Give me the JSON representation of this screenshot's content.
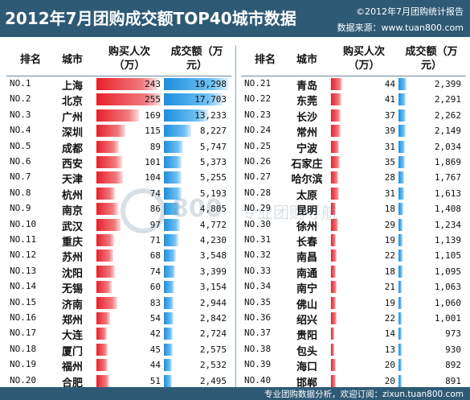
{
  "header": {
    "title": "2012年7月团购成交额TOP40城市数据",
    "copyright": "©2012年7月团购统计报告",
    "source": "数据来源：www.tuan800.com"
  },
  "columns": {
    "rank": "排名",
    "city": "城市",
    "buyers": "购买人次（万）",
    "amount": "成交额（万元）"
  },
  "footer": {
    "text": "专业团购数据分析，欢迎订阅：zixun.tuan800.com"
  },
  "watermark": {
    "logo_text": "800",
    "sub_text": "专业团购导航"
  },
  "colors": {
    "header_bg": "#2f5a76",
    "bar_buyers": "#e8202a",
    "bar_amount": "#1b8fe0"
  },
  "chart_data": {
    "type": "table",
    "title": "2012年7月团购成交额TOP40城市数据",
    "bar_max": {
      "buyers": 255,
      "amount": 19298
    },
    "left": [
      {
        "rank": "NO.1",
        "city": "上海",
        "buyers": 243,
        "amount": "19,298",
        "amount_value": 19298
      },
      {
        "rank": "NO.2",
        "city": "北京",
        "buyers": 255,
        "amount": "17,703",
        "amount_value": 17703
      },
      {
        "rank": "NO.3",
        "city": "广州",
        "buyers": 169,
        "amount": "13,233",
        "amount_value": 13233
      },
      {
        "rank": "NO.4",
        "city": "深圳",
        "buyers": 115,
        "amount": "8,227",
        "amount_value": 8227
      },
      {
        "rank": "NO.5",
        "city": "成都",
        "buyers": 89,
        "amount": "5,747",
        "amount_value": 5747
      },
      {
        "rank": "NO.6",
        "city": "西安",
        "buyers": 101,
        "amount": "5,373",
        "amount_value": 5373
      },
      {
        "rank": "NO.7",
        "city": "天津",
        "buyers": 104,
        "amount": "5,255",
        "amount_value": 5255
      },
      {
        "rank": "NO.8",
        "city": "杭州",
        "buyers": 74,
        "amount": "5,193",
        "amount_value": 5193
      },
      {
        "rank": "NO.9",
        "city": "南京",
        "buyers": 86,
        "amount": "4,805",
        "amount_value": 4805
      },
      {
        "rank": "NO.10",
        "city": "武汉",
        "buyers": 97,
        "amount": "4,772",
        "amount_value": 4772
      },
      {
        "rank": "NO.11",
        "city": "重庆",
        "buyers": 71,
        "amount": "4,230",
        "amount_value": 4230
      },
      {
        "rank": "NO.12",
        "city": "苏州",
        "buyers": 68,
        "amount": "3,548",
        "amount_value": 3548
      },
      {
        "rank": "NO.13",
        "city": "沈阳",
        "buyers": 74,
        "amount": "3,399",
        "amount_value": 3399
      },
      {
        "rank": "NO.14",
        "city": "无锡",
        "buyers": 60,
        "amount": "3,154",
        "amount_value": 3154
      },
      {
        "rank": "NO.15",
        "city": "济南",
        "buyers": 83,
        "amount": "2,944",
        "amount_value": 2944
      },
      {
        "rank": "NO.16",
        "city": "郑州",
        "buyers": 54,
        "amount": "2,842",
        "amount_value": 2842
      },
      {
        "rank": "NO.17",
        "city": "大连",
        "buyers": 42,
        "amount": "2,724",
        "amount_value": 2724
      },
      {
        "rank": "NO.18",
        "city": "厦门",
        "buyers": 45,
        "amount": "2,575",
        "amount_value": 2575
      },
      {
        "rank": "NO.19",
        "city": "福州",
        "buyers": 44,
        "amount": "2,532",
        "amount_value": 2532
      },
      {
        "rank": "NO.20",
        "city": "合肥",
        "buyers": 51,
        "amount": "2,495",
        "amount_value": 2495
      }
    ],
    "right": [
      {
        "rank": "NO.21",
        "city": "青岛",
        "buyers": 44,
        "amount": "2,399",
        "amount_value": 2399
      },
      {
        "rank": "NO.22",
        "city": "东莞",
        "buyers": 41,
        "amount": "2,291",
        "amount_value": 2291
      },
      {
        "rank": "NO.23",
        "city": "长沙",
        "buyers": 37,
        "amount": "2,262",
        "amount_value": 2262
      },
      {
        "rank": "NO.24",
        "city": "常州",
        "buyers": 39,
        "amount": "2,149",
        "amount_value": 2149
      },
      {
        "rank": "NO.25",
        "city": "宁波",
        "buyers": 31,
        "amount": "2,034",
        "amount_value": 2034
      },
      {
        "rank": "NO.26",
        "city": "石家庄",
        "buyers": 35,
        "amount": "1,869",
        "amount_value": 1869
      },
      {
        "rank": "NO.27",
        "city": "哈尔滨",
        "buyers": 28,
        "amount": "1,767",
        "amount_value": 1767
      },
      {
        "rank": "NO.28",
        "city": "太原",
        "buyers": 31,
        "amount": "1,613",
        "amount_value": 1613
      },
      {
        "rank": "NO.29",
        "city": "昆明",
        "buyers": 18,
        "amount": "1,408",
        "amount_value": 1408
      },
      {
        "rank": "NO.30",
        "city": "徐州",
        "buyers": 29,
        "amount": "1,234",
        "amount_value": 1234
      },
      {
        "rank": "NO.31",
        "city": "长春",
        "buyers": 19,
        "amount": "1,139",
        "amount_value": 1139
      },
      {
        "rank": "NO.32",
        "city": "南昌",
        "buyers": 22,
        "amount": "1,105",
        "amount_value": 1105
      },
      {
        "rank": "NO.33",
        "city": "南通",
        "buyers": 18,
        "amount": "1,095",
        "amount_value": 1095
      },
      {
        "rank": "NO.34",
        "city": "南宁",
        "buyers": 21,
        "amount": "1,063",
        "amount_value": 1063
      },
      {
        "rank": "NO.35",
        "city": "佛山",
        "buyers": 19,
        "amount": "1,060",
        "amount_value": 1060
      },
      {
        "rank": "NO.36",
        "city": "绍兴",
        "buyers": 22,
        "amount": "1,001",
        "amount_value": 1001
      },
      {
        "rank": "NO.37",
        "city": "贵阳",
        "buyers": 14,
        "amount": "973",
        "amount_value": 973
      },
      {
        "rank": "NO.38",
        "city": "包头",
        "buyers": 13,
        "amount": "930",
        "amount_value": 930
      },
      {
        "rank": "NO.39",
        "city": "海口",
        "buyers": 20,
        "amount": "892",
        "amount_value": 892
      },
      {
        "rank": "NO.40",
        "city": "邯郸",
        "buyers": 20,
        "amount": "891",
        "amount_value": 891
      }
    ]
  }
}
